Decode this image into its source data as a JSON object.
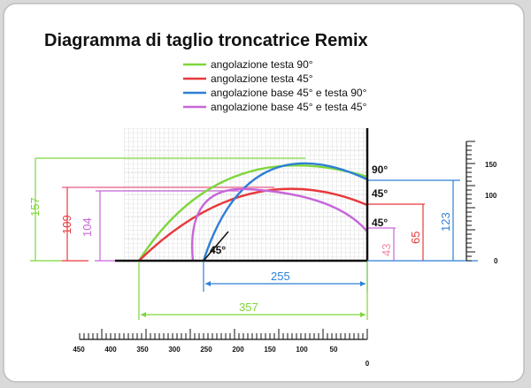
{
  "title": "Diagramma di taglio troncatrice Remix",
  "colors": {
    "green": "#7ed63a",
    "red": "#e8383b",
    "blue": "#2e7fd6",
    "violet": "#c766d9",
    "pink": "#ef8aa6",
    "black": "#111111",
    "grid": "#c9c9c9"
  },
  "legend": [
    {
      "label": "angolazione testa 90°",
      "color": "#7ed63a"
    },
    {
      "label": "angolazione testa 45°",
      "color": "#e8383b"
    },
    {
      "label": "angolazione base 45° e testa 90°",
      "color": "#2e7fd6"
    },
    {
      "label": "angolazione base 45° e testa 45°",
      "color": "#c766d9"
    }
  ],
  "angle_labels": {
    "top": "90°",
    "middle": "45°",
    "lower": "45°",
    "base": "45°"
  },
  "dimensions": {
    "height_green": "157",
    "height_red": "109",
    "height_violet": "104",
    "height_blue": "123",
    "height_red_right": "65",
    "height_violet_right": "43",
    "width_blue": "255",
    "width_green": "357"
  },
  "vertical_scale": {
    "labels": [
      "150",
      "100",
      "0"
    ]
  },
  "horizontal_scale": {
    "labels": [
      "450",
      "400",
      "350",
      "300",
      "250",
      "200",
      "150",
      "100",
      "50",
      "0"
    ]
  }
}
